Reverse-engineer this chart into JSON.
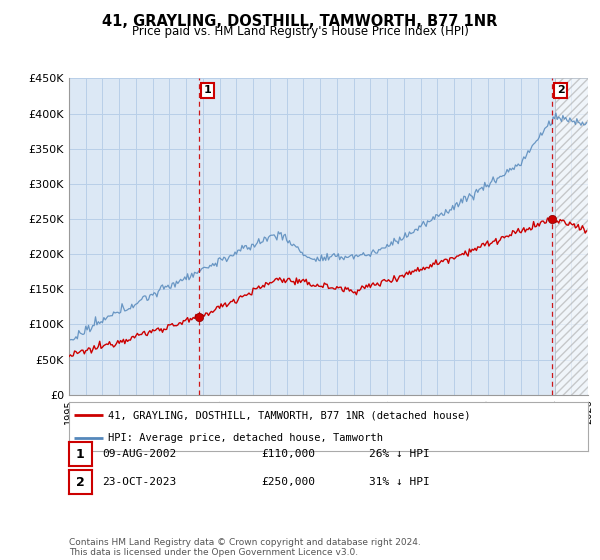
{
  "title": "41, GRAYLING, DOSTHILL, TAMWORTH, B77 1NR",
  "subtitle": "Price paid vs. HM Land Registry's House Price Index (HPI)",
  "ylim": [
    0,
    450000
  ],
  "yticks": [
    0,
    50000,
    100000,
    150000,
    200000,
    250000,
    300000,
    350000,
    400000,
    450000
  ],
  "ytick_labels": [
    "£0",
    "£50K",
    "£100K",
    "£150K",
    "£200K",
    "£250K",
    "£300K",
    "£350K",
    "£400K",
    "£450K"
  ],
  "bg_color": "#dce8f5",
  "grid_color": "#b8cfe8",
  "line_red": "#cc0000",
  "line_blue": "#5588bb",
  "marker1_x": 2002.75,
  "marker1_y": 110000,
  "marker2_x": 2023.83,
  "marker2_y": 250000,
  "legend_label_red": "41, GRAYLING, DOSTHILL, TAMWORTH, B77 1NR (detached house)",
  "legend_label_blue": "HPI: Average price, detached house, Tamworth",
  "table_rows": [
    {
      "num": "1",
      "date": "09-AUG-2002",
      "price": "£110,000",
      "pct": "26% ↓ HPI"
    },
    {
      "num": "2",
      "date": "23-OCT-2023",
      "price": "£250,000",
      "pct": "31% ↓ HPI"
    }
  ],
  "footer": "Contains HM Land Registry data © Crown copyright and database right 2024.\nThis data is licensed under the Open Government Licence v3.0.",
  "xmin": 1995,
  "xmax": 2026,
  "hatch_start": 2024.0
}
